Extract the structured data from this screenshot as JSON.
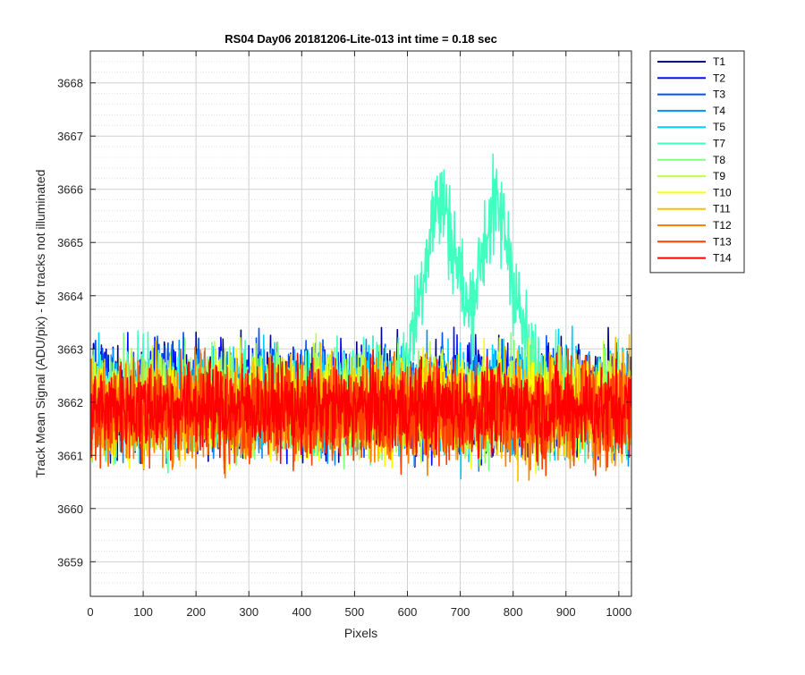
{
  "chart_data": {
    "type": "line",
    "title": "RS04 Day06 20181206-Lite-013 int time = 0.18 sec",
    "xlabel": "Pixels",
    "ylabel": "Track Mean Signal (ADU/pix) - for tracks not illuminated",
    "xlim": [
      0,
      1024
    ],
    "ylim": [
      3658.35,
      3668.6
    ],
    "xticks": [
      0,
      100,
      200,
      300,
      400,
      500,
      600,
      700,
      800,
      900,
      1000
    ],
    "yticks": [
      3659,
      3660,
      3661,
      3662,
      3663,
      3664,
      3665,
      3666,
      3667,
      3668
    ],
    "grid": true,
    "minor_grid": true,
    "legend_position": "outside-top-right",
    "series": [
      {
        "name": "T1",
        "color": "#00008F",
        "mean": 3662.1,
        "noise": 1.25,
        "bump": 0
      },
      {
        "name": "T2",
        "color": "#0010FF",
        "mean": 3662.1,
        "noise": 1.25,
        "bump": 0
      },
      {
        "name": "T3",
        "color": "#0050FF",
        "mean": 3662.1,
        "noise": 1.25,
        "bump": 0
      },
      {
        "name": "T4",
        "color": "#0090FF",
        "mean": 3662.0,
        "noise": 1.25,
        "bump": 0
      },
      {
        "name": "T5",
        "color": "#00D0FF",
        "mean": 3662.0,
        "noise": 1.25,
        "bump": 0
      },
      {
        "name": "T7",
        "color": "#40FFBF",
        "mean": 3662.0,
        "noise": 1.3,
        "bump": 2.9
      },
      {
        "name": "T8",
        "color": "#80FF80",
        "mean": 3662.0,
        "noise": 1.25,
        "bump": 0
      },
      {
        "name": "T9",
        "color": "#BFFF40",
        "mean": 3662.0,
        "noise": 1.25,
        "bump": 0
      },
      {
        "name": "T10",
        "color": "#FFFF00",
        "mean": 3661.9,
        "noise": 1.2,
        "bump": 0
      },
      {
        "name": "T11",
        "color": "#FFBF00",
        "mean": 3661.9,
        "noise": 1.2,
        "bump": 0
      },
      {
        "name": "T12",
        "color": "#FF8000",
        "mean": 3661.8,
        "noise": 1.2,
        "bump": 0
      },
      {
        "name": "T13",
        "color": "#FF4000",
        "mean": 3661.8,
        "noise": 1.15,
        "bump": 0
      },
      {
        "name": "T14",
        "color": "#FF0000",
        "mean": 3661.9,
        "noise": 1.05,
        "bump": 0
      }
    ]
  }
}
